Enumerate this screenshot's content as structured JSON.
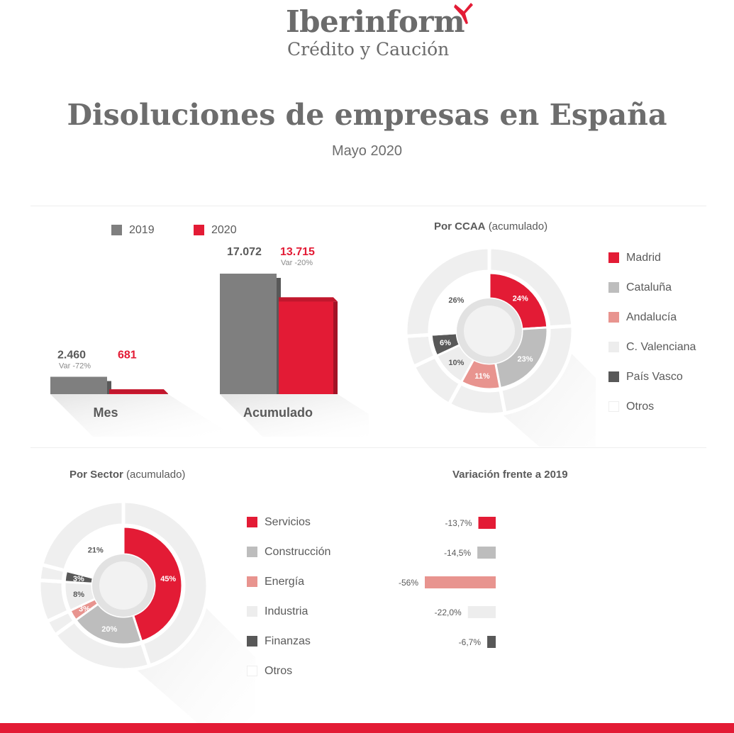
{
  "header": {
    "brand": "Iberinform",
    "brand_sub": "Crédito y Caución",
    "title": "Disoluciones de empresas en España",
    "subtitle": "Mayo 2020"
  },
  "colors": {
    "red": "#e31b35",
    "dark_red": "#b5152a",
    "gray": "#7f7f7f",
    "light_gray": "#bdbdbd",
    "pink": "#e8948f",
    "very_light": "#ededed",
    "dark": "#585858",
    "white": "#ffffff"
  },
  "chart_data": [
    {
      "id": "bars",
      "type": "bar",
      "categories": [
        "Mes",
        "Acumulado"
      ],
      "series": [
        {
          "name": "2019",
          "color": "#7f7f7f",
          "values": [
            2460,
            17072
          ],
          "labels": [
            "2.460",
            "17.072"
          ]
        },
        {
          "name": "2020",
          "color": "#e31b35",
          "values": [
            681,
            13715
          ],
          "labels": [
            "681",
            "13.715"
          ]
        }
      ],
      "variation_labels": [
        "Var -72%",
        "Var -20%"
      ],
      "ylim": [
        0,
        17072
      ]
    },
    {
      "id": "ccaa",
      "type": "pie",
      "title": "Por CCAA",
      "title_suffix": "(acumulado)",
      "labels": [
        "Madrid",
        "Cataluña",
        "Andalucía",
        "C. Valenciana",
        "País Vasco",
        "Otros"
      ],
      "values": [
        24,
        23,
        11,
        10,
        6,
        26
      ],
      "value_labels": [
        "24%",
        "23%",
        "11%",
        "10%",
        "6%",
        "26%"
      ],
      "colors": [
        "#e31b35",
        "#bdbdbd",
        "#e8948f",
        "#ededed",
        "#585858",
        "#ffffff"
      ]
    },
    {
      "id": "sector",
      "type": "pie",
      "title": "Por Sector",
      "title_suffix": "(acumulado)",
      "labels": [
        "Servicios",
        "Construcción",
        "Energía",
        "Industria",
        "Finanzas",
        "Otros"
      ],
      "values": [
        45,
        20,
        3,
        8,
        3,
        21
      ],
      "value_labels": [
        "45%",
        "20%",
        "3%",
        "8%",
        "3%",
        "21%"
      ],
      "colors": [
        "#e31b35",
        "#bdbdbd",
        "#e8948f",
        "#ededed",
        "#585858",
        "#ffffff"
      ]
    },
    {
      "id": "variacion",
      "type": "bar",
      "orientation": "horizontal",
      "title": "Variación frente a 2019",
      "categories": [
        "Servicios",
        "Construcción",
        "Energía",
        "Industria",
        "Finanzas"
      ],
      "values": [
        -13.7,
        -14.5,
        -56,
        -22.0,
        -6.7
      ],
      "value_labels": [
        "-13,7%",
        "-14,5%",
        "-56%",
        "-22,0%",
        "-6,7%"
      ],
      "colors": [
        "#e31b35",
        "#bdbdbd",
        "#e8948f",
        "#ededed",
        "#585858"
      ]
    }
  ]
}
